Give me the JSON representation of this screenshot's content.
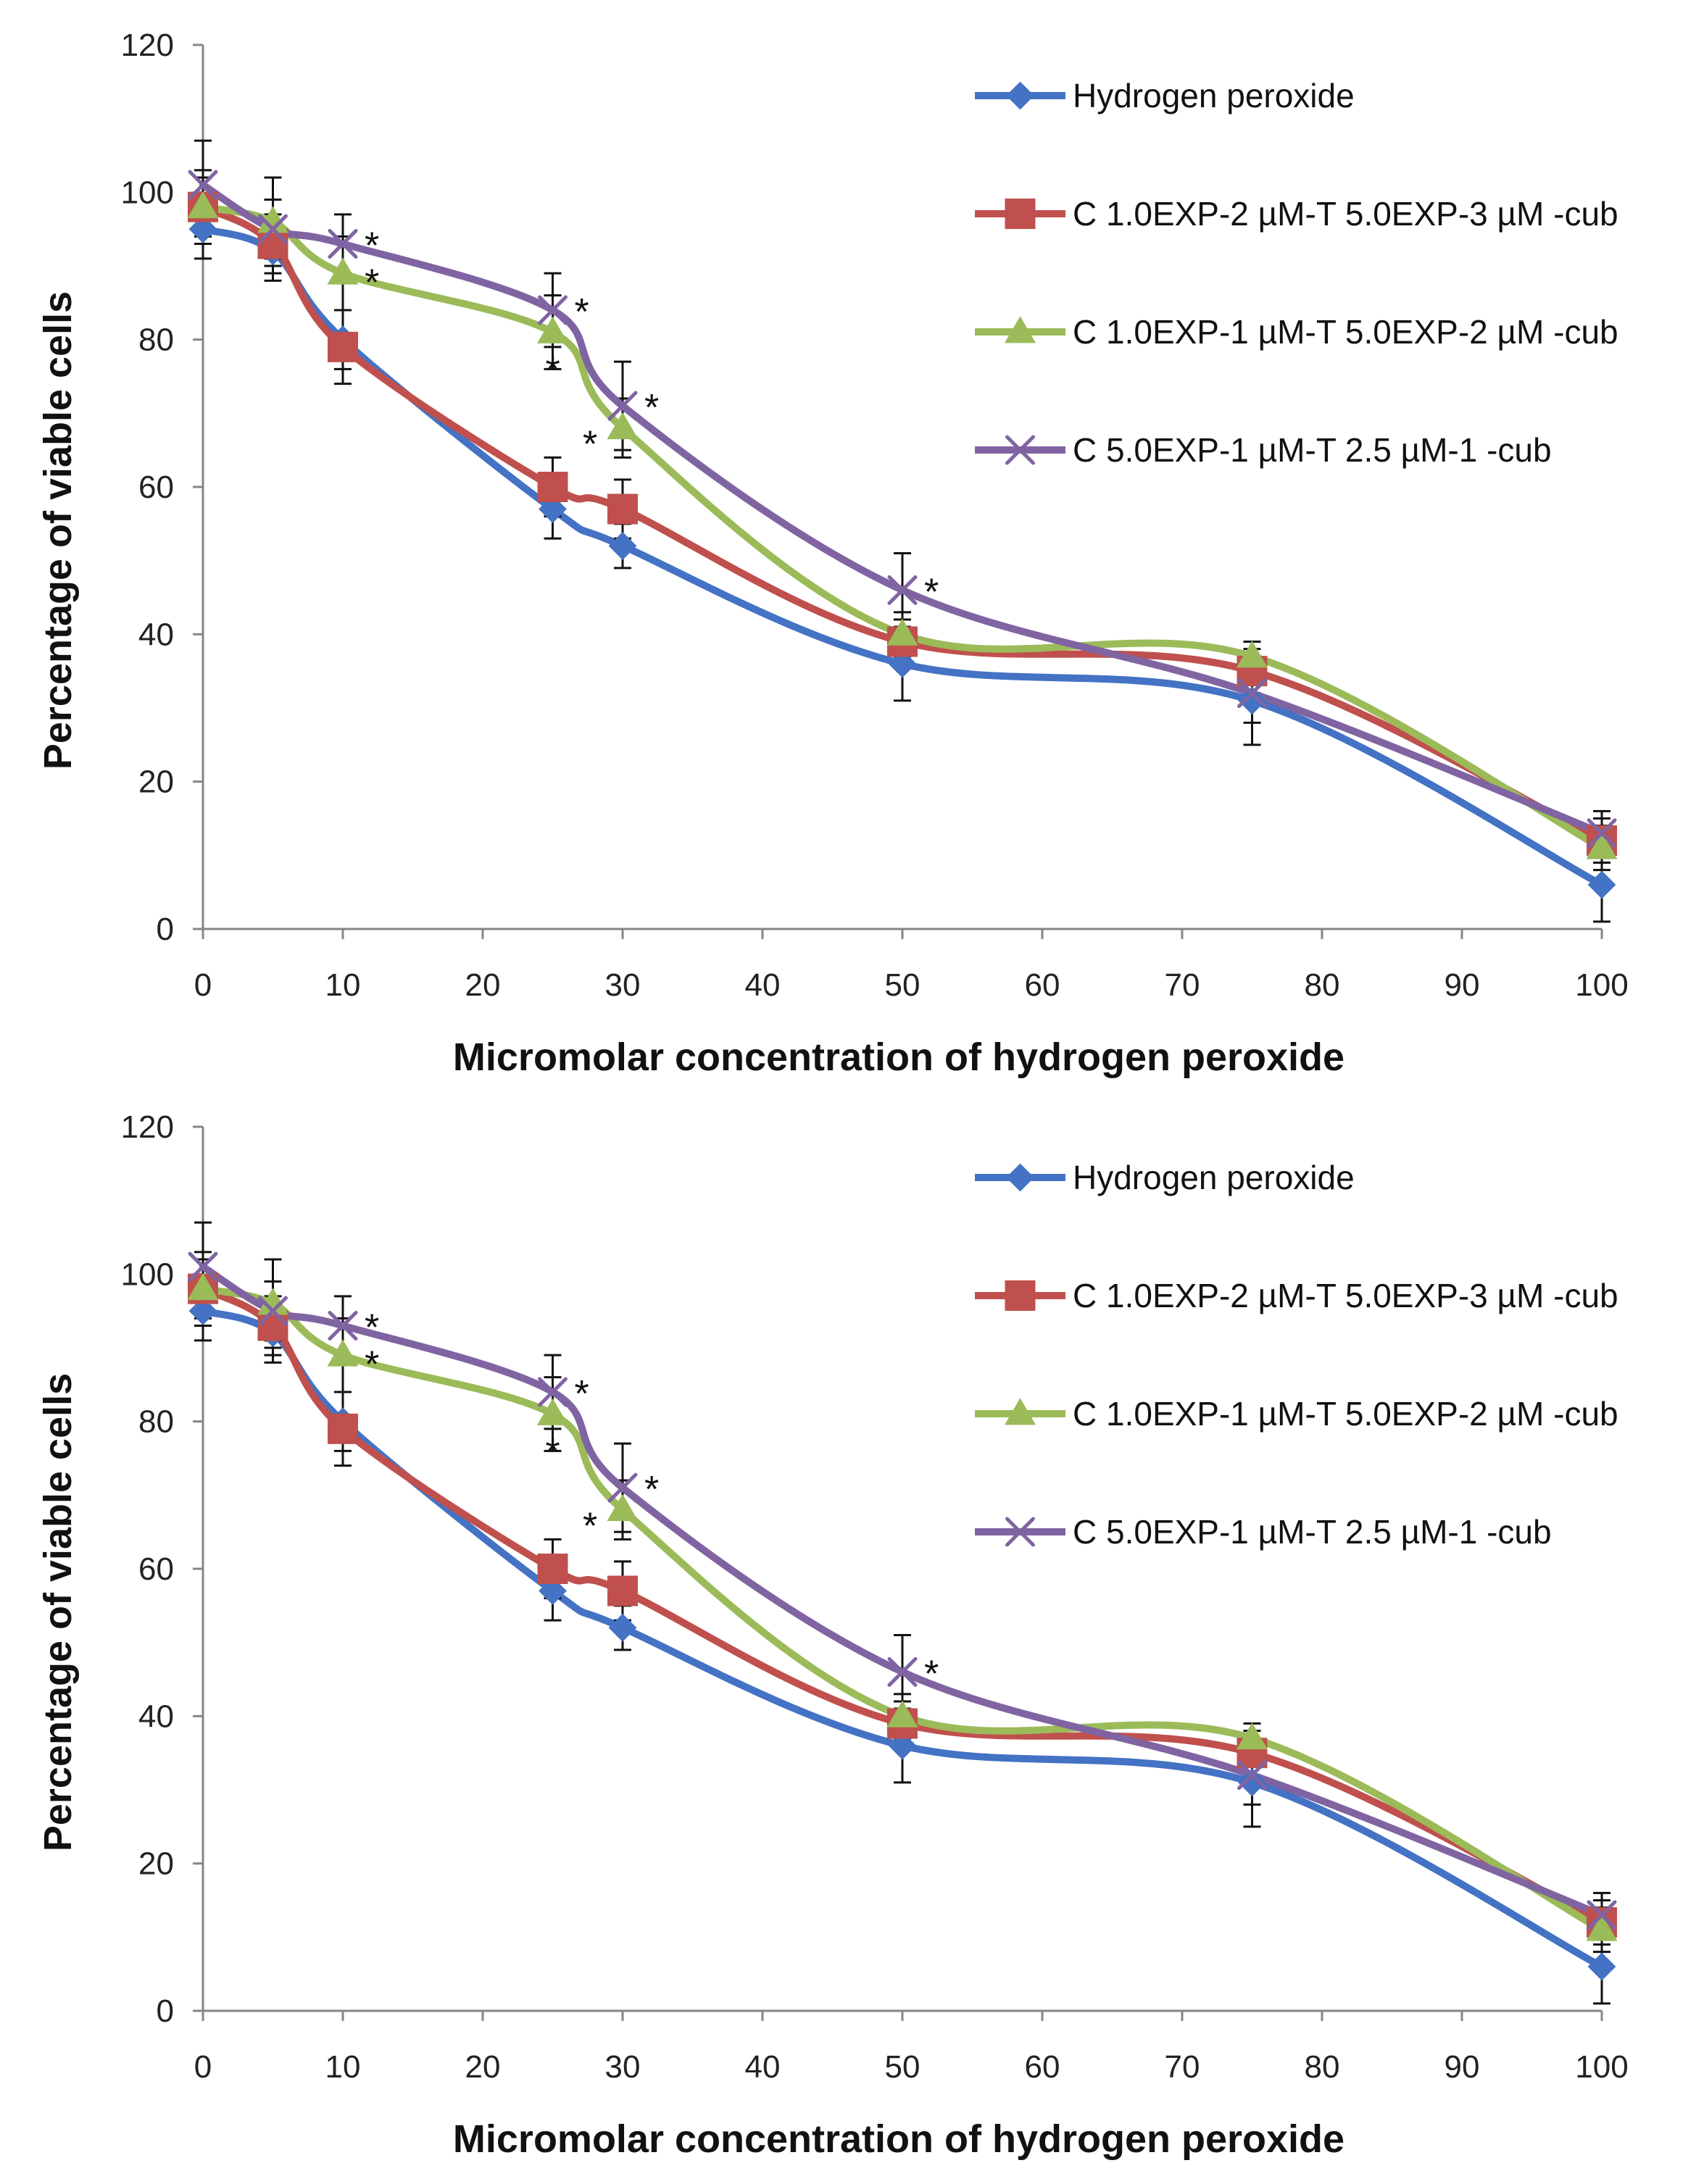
{
  "chart_data": [
    {
      "type": "line",
      "title": "",
      "xlabel": "Micromolar concentration of hydrogen peroxide",
      "ylabel": "Percentage of viable cells",
      "xlim": [
        0,
        100
      ],
      "ylim": [
        0,
        120
      ],
      "xticks": [
        0,
        10,
        20,
        30,
        40,
        50,
        60,
        70,
        80,
        90,
        100
      ],
      "yticks": [
        0,
        20,
        40,
        60,
        80,
        100,
        120
      ],
      "grid": false,
      "legend_position": "top-right",
      "x": [
        0,
        5,
        10,
        25,
        30,
        50,
        75,
        100
      ],
      "series": [
        {
          "name": "Hydrogen peroxide",
          "color": "#4472C4",
          "marker": "diamond",
          "values": [
            95,
            92,
            80,
            57,
            52,
            36,
            31,
            6
          ],
          "errors": [
            4,
            4,
            4,
            4,
            3,
            5,
            6,
            5
          ]
        },
        {
          "name": "C 1.0EXP-2 µM-T 5.0EXP-3 µM -cub",
          "color": "#C0504D",
          "marker": "square",
          "values": [
            98,
            93,
            79,
            60,
            57,
            39,
            35,
            12
          ],
          "errors": [
            4,
            4,
            5,
            4,
            4,
            3,
            3,
            3
          ]
        },
        {
          "name": "C 1.0EXP-1 µM-T 5.0EXP-2 µM -cub",
          "color": "#9BBB59",
          "marker": "triangle",
          "values": [
            98,
            96,
            89,
            81,
            68,
            40,
            37,
            11
          ],
          "errors": [
            5,
            6,
            5,
            5,
            4,
            3,
            2,
            3
          ]
        },
        {
          "name": "C 5.0EXP-1 µM-T 2.5 µM-1  -cub",
          "color": "#8064A2",
          "marker": "x",
          "values": [
            101,
            95,
            93,
            84,
            71,
            46,
            32,
            13
          ],
          "errors": [
            6,
            4,
            4,
            5,
            6,
            5,
            4,
            3
          ]
        }
      ],
      "annotations": [
        {
          "text": "*",
          "x": 10,
          "y": 93,
          "pos": "right"
        },
        {
          "text": "*",
          "x": 10,
          "y": 88,
          "pos": "right"
        },
        {
          "text": "*",
          "x": 25,
          "y": 84,
          "pos": "right"
        },
        {
          "text": "*",
          "x": 25,
          "y": 81,
          "pos": "below"
        },
        {
          "text": "*",
          "x": 30,
          "y": 71,
          "pos": "right"
        },
        {
          "text": "*",
          "x": 30,
          "y": 68,
          "pos": "left"
        },
        {
          "text": "*",
          "x": 50,
          "y": 46,
          "pos": "right"
        }
      ]
    },
    {
      "type": "line",
      "title": "",
      "xlabel": "Micromolar concentration of hydrogen peroxide",
      "ylabel": "Percentage of viable cells",
      "xlim": [
        0,
        100
      ],
      "ylim": [
        0,
        120
      ],
      "xticks": [
        0,
        10,
        20,
        30,
        40,
        50,
        60,
        70,
        80,
        90,
        100
      ],
      "yticks": [
        0,
        20,
        40,
        60,
        80,
        100,
        120
      ],
      "grid": false,
      "legend_position": "top-right",
      "x": [
        0,
        5,
        10,
        25,
        30,
        50,
        75,
        100
      ],
      "series": [
        {
          "name": "Hydrogen peroxide",
          "color": "#4472C4",
          "marker": "diamond",
          "values": [
            95,
            92,
            80,
            57,
            52,
            36,
            31,
            6
          ],
          "errors": [
            4,
            4,
            4,
            4,
            3,
            5,
            6,
            5
          ]
        },
        {
          "name": "C 1.0EXP-2 µM-T 5.0EXP-3 µM -cub",
          "color": "#C0504D",
          "marker": "square",
          "values": [
            98,
            93,
            79,
            60,
            57,
            39,
            35,
            12
          ],
          "errors": [
            4,
            4,
            5,
            4,
            4,
            3,
            3,
            3
          ]
        },
        {
          "name": "C 1.0EXP-1 µM-T 5.0EXP-2 µM -cub",
          "color": "#9BBB59",
          "marker": "triangle",
          "values": [
            98,
            96,
            89,
            81,
            68,
            40,
            37,
            11
          ],
          "errors": [
            5,
            6,
            5,
            5,
            4,
            3,
            2,
            3
          ]
        },
        {
          "name": "C 5.0EXP-1 µM-T 2.5 µM-1  -cub",
          "color": "#8064A2",
          "marker": "x",
          "values": [
            101,
            95,
            93,
            84,
            71,
            46,
            32,
            13
          ],
          "errors": [
            6,
            4,
            4,
            5,
            6,
            5,
            4,
            3
          ]
        }
      ],
      "annotations": [
        {
          "text": "*",
          "x": 10,
          "y": 93,
          "pos": "right"
        },
        {
          "text": "*",
          "x": 10,
          "y": 88,
          "pos": "right"
        },
        {
          "text": "*",
          "x": 25,
          "y": 84,
          "pos": "right"
        },
        {
          "text": "*",
          "x": 25,
          "y": 81,
          "pos": "below"
        },
        {
          "text": "*",
          "x": 30,
          "y": 71,
          "pos": "right"
        },
        {
          "text": "*",
          "x": 30,
          "y": 68,
          "pos": "left"
        },
        {
          "text": "*",
          "x": 50,
          "y": 46,
          "pos": "right"
        }
      ]
    }
  ]
}
